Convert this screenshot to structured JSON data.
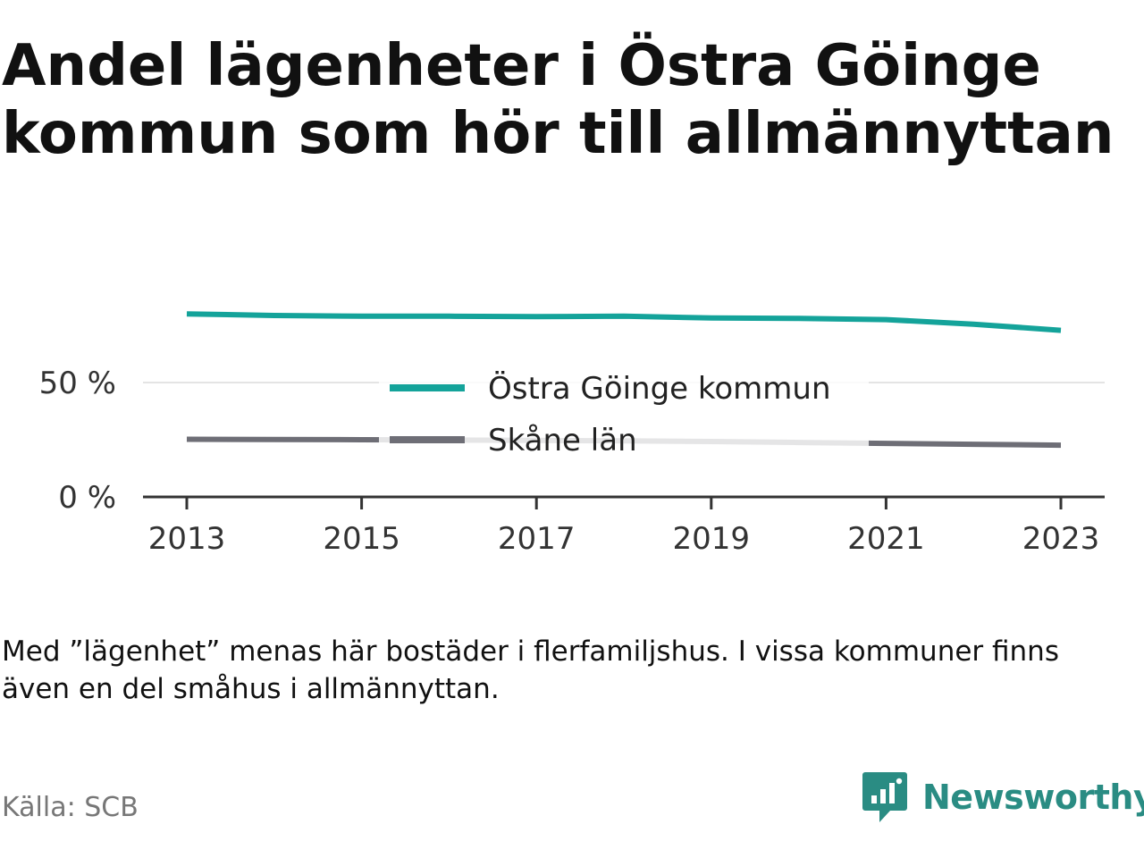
{
  "title": "Andel lägenheter i Östra Göinge kommun som hör till allmännyttan",
  "note": "Med ”lägenhet” menas här bostäder i flerfamiljshus. I vissa kommuner finns även en del småhus i allmännyttan.",
  "source": "Källa: SCB",
  "brand": {
    "name": "Newsworthy",
    "icon": "newsworthy-logo-icon",
    "color": "#2a8c83"
  },
  "chart_data": {
    "type": "line",
    "x": [
      2013,
      2014,
      2015,
      2016,
      2017,
      2018,
      2019,
      2020,
      2021,
      2022,
      2023
    ],
    "x_ticks": [
      "2013",
      "2015",
      "2017",
      "2019",
      "2021",
      "2023"
    ],
    "y_ticks": [
      "0 %",
      "50 %"
    ],
    "ylim": [
      0,
      100
    ],
    "grid": true,
    "legend_position": "center",
    "series": [
      {
        "name": "Östra Göinge kommun",
        "color": "#14a39a",
        "values": [
          80.0,
          79.3,
          79.0,
          79.0,
          78.8,
          79.0,
          78.2,
          78.0,
          77.5,
          75.5,
          72.8
        ]
      },
      {
        "name": "Skåne län",
        "color": "#6e6e76",
        "values": [
          25.2,
          25.1,
          25.0,
          24.9,
          24.7,
          24.5,
          24.2,
          23.8,
          23.4,
          23.0,
          22.6
        ]
      }
    ]
  }
}
